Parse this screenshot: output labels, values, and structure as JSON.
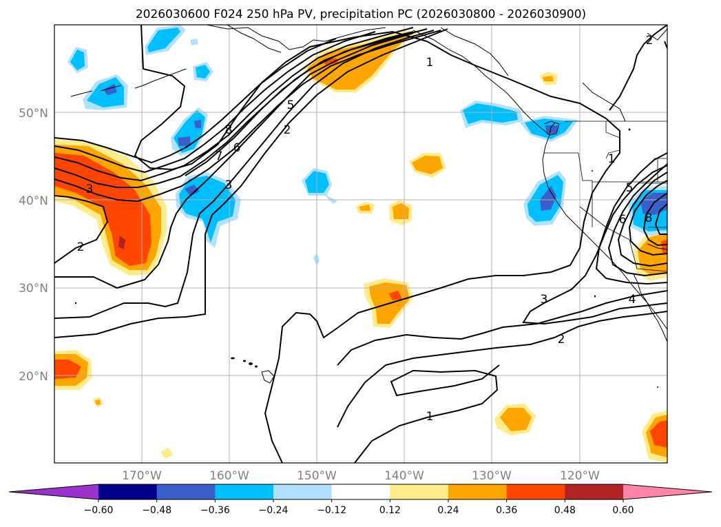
{
  "figure": {
    "title": "2026030600 F024 250 hPa PV, precipitation PC (2026030800 - 2026030900)"
  },
  "map": {
    "projection": "PlateCarree",
    "lon_range": [
      -180,
      -110
    ],
    "lat_range": [
      10,
      60
    ],
    "grid": true,
    "lat_labels": [
      "20°N",
      "30°N",
      "40°N",
      "50°N"
    ],
    "lon_labels": [
      "170°W",
      "160°W",
      "150°W",
      "140°W",
      "130°W",
      "120°W"
    ],
    "pv_contour_labels": [
      "2",
      "1",
      "5",
      "2",
      "8",
      "7",
      "6",
      "3",
      "3",
      "2",
      "1",
      "3",
      "4",
      "2",
      "1",
      "5",
      "6",
      "8"
    ]
  },
  "colorbar": {
    "ticks": [
      "−0.60",
      "−0.48",
      "−0.36",
      "−0.24",
      "−0.12",
      "0.12",
      "0.24",
      "0.36",
      "0.48",
      "0.60"
    ],
    "colors": [
      "#9933cc",
      "#00008b",
      "#3a5fcd",
      "#00bfff",
      "#b0e2ff",
      "#ffffff",
      "#ffeb8a",
      "#ffa500",
      "#ff4500",
      "#b22222",
      "#ff85a8"
    ],
    "extend": "both"
  }
}
